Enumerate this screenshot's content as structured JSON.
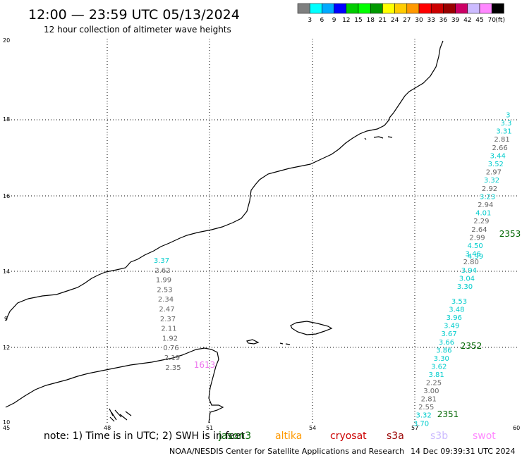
{
  "header": {
    "title": "12:00 — 23:59 UTC 05/13/2024",
    "subtitle": "12 hour collection of altimeter wave heights"
  },
  "legend": {
    "colors": [
      "#7f7f7f",
      "#00ffff",
      "#00aaff",
      "#0000ff",
      "#00cc00",
      "#00ff00",
      "#009900",
      "#ffff00",
      "#ffcc00",
      "#ff9900",
      "#ff0000",
      "#cc0000",
      "#990000",
      "#cc0066",
      "#ccbbff",
      "#ff88ff",
      "#000000"
    ],
    "labels": [
      "3",
      "6",
      "9",
      "12",
      "15",
      "18",
      "21",
      "24",
      "27",
      "30",
      "33",
      "36",
      "39",
      "42",
      "45",
      "70",
      "(ft)"
    ]
  },
  "axes": {
    "x_ticks": [
      "45",
      "48",
      "51",
      "54",
      "57",
      "60"
    ],
    "y_ticks": [
      "10",
      "12",
      "14",
      "16",
      "18",
      "20"
    ],
    "y_extra": [
      "9"
    ]
  },
  "tracks": [
    {
      "id": "track-1613",
      "values": [
        {
          "v": "3.37",
          "c": "#00cccc"
        },
        {
          "v": "2.62",
          "c": "#666666"
        },
        {
          "v": "1.99",
          "c": "#666666"
        },
        {
          "v": "2.53",
          "c": "#666666"
        },
        {
          "v": "2.34",
          "c": "#666666"
        },
        {
          "v": "2.47",
          "c": "#666666"
        },
        {
          "v": "2.37",
          "c": "#666666"
        },
        {
          "v": "2.11",
          "c": "#666666"
        },
        {
          "v": "1.92",
          "c": "#666666"
        },
        {
          "v": "0.76",
          "c": "#666666"
        },
        {
          "v": "2.19",
          "c": "#666666"
        },
        {
          "v": "2.35",
          "c": "#666666"
        }
      ]
    },
    {
      "id": "track-2351-2352",
      "values": [
        {
          "v": "3.53",
          "c": "#00cccc"
        },
        {
          "v": "3.48",
          "c": "#00cccc"
        },
        {
          "v": "3.96",
          "c": "#00cccc"
        },
        {
          "v": "3.49",
          "c": "#00cccc"
        },
        {
          "v": "3.67",
          "c": "#00cccc"
        },
        {
          "v": "3.66",
          "c": "#00cccc"
        },
        {
          "v": "3.86",
          "c": "#00cccc"
        },
        {
          "v": "3.30",
          "c": "#00cccc"
        },
        {
          "v": "3.62",
          "c": "#00cccc"
        },
        {
          "v": "3.81",
          "c": "#00cccc"
        },
        {
          "v": "2.25",
          "c": "#666666"
        },
        {
          "v": "3.00",
          "c": "#666666"
        },
        {
          "v": "2.81",
          "c": "#666666"
        },
        {
          "v": "2.55",
          "c": "#666666"
        },
        {
          "v": "3.32",
          "c": "#00cccc"
        },
        {
          "v": "3.70",
          "c": "#00cccc"
        }
      ]
    },
    {
      "id": "track-2353",
      "values": [
        {
          "v": "3.30",
          "c": "#00cccc"
        },
        {
          "v": "3.04",
          "c": "#00cccc"
        },
        {
          "v": "3.94",
          "c": "#00cccc"
        },
        {
          "v": "2.80",
          "c": "#666666"
        },
        {
          "v": "3.46",
          "c": "#00cccc"
        },
        {
          "v": "4.50",
          "c": "#00cccc"
        },
        {
          "v": "2.99",
          "c": "#666666"
        },
        {
          "v": "2.64",
          "c": "#666666"
        },
        {
          "v": "2.29",
          "c": "#666666"
        },
        {
          "v": "4.01",
          "c": "#00cccc"
        },
        {
          "v": "2.94",
          "c": "#666666"
        },
        {
          "v": "3.23",
          "c": "#00cccc"
        },
        {
          "v": "2.92",
          "c": "#666666"
        },
        {
          "v": "3.32",
          "c": "#00cccc"
        },
        {
          "v": "2.97",
          "c": "#666666"
        },
        {
          "v": "3.52",
          "c": "#00cccc"
        },
        {
          "v": "3.44",
          "c": "#00cccc"
        },
        {
          "v": "2.66",
          "c": "#666666"
        },
        {
          "v": "2.81",
          "c": "#666666"
        },
        {
          "v": "3.31",
          "c": "#00cccc"
        },
        {
          "v": "3.3",
          "c": "#00cccc"
        },
        {
          "v": "3",
          "c": "#00cccc"
        }
      ]
    }
  ],
  "extra_values": {
    "v_499": "4.99"
  },
  "orbits": [
    {
      "label": "1613",
      "color": "#ee77ee"
    },
    {
      "label": "2351",
      "color": "#006600"
    },
    {
      "label": "2352",
      "color": "#006600"
    },
    {
      "label": "2353",
      "color": "#006600"
    }
  ],
  "note": {
    "prefix": "note: 1) Time is in UTC; 2) SWH is in feet",
    "satellites": [
      {
        "name": "jason3",
        "color": "#006600"
      },
      {
        "name": "altika",
        "color": "#ff9900"
      },
      {
        "name": "cryosat",
        "color": "#cc0000"
      },
      {
        "name": "s3a",
        "color": "#990000"
      },
      {
        "name": "s3b",
        "color": "#ccbbff"
      },
      {
        "name": "swot",
        "color": "#ff88ff"
      }
    ]
  },
  "footer": {
    "credit": "NOAA/NESDIS Center for Satellite Applications and Research",
    "timestamp": "14 Dec 09:39:31 UTC 2024"
  }
}
